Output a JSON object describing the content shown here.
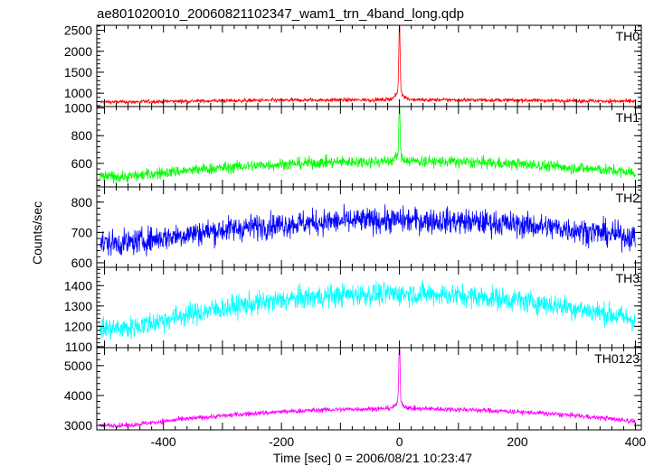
{
  "chart_data": {
    "type": "line",
    "title": "ae801020010_20060821102347_wam1_trn_4band_long.qdp",
    "xlabel": "Time [sec] 0 = 2006/08/21 10:23:47",
    "ylabel": "Counts/sec",
    "xlim": [
      -513,
      410
    ],
    "xticks": [
      -400,
      -200,
      0,
      200,
      400
    ],
    "panels": [
      {
        "name": "TH0",
        "color": "#ff0000",
        "ylim": [
          680,
          2620
        ],
        "yticks": [
          1000,
          1500,
          2000,
          2500
        ],
        "base_edge": 790,
        "base_center": 840,
        "noise": 32,
        "peak": 2560,
        "peak_width": 1.5
      },
      {
        "name": "TH1",
        "color": "#00ff00",
        "ylim": [
          430,
          1010
        ],
        "yticks": [
          600,
          800,
          1000
        ],
        "base_edge": 505,
        "base_center": 615,
        "noise": 30,
        "peak": 990,
        "peak_width": 1.5
      },
      {
        "name": "TH2",
        "color": "#0000ff",
        "ylim": [
          585,
          850
        ],
        "yticks": [
          600,
          700,
          800
        ],
        "base_edge": 665,
        "base_center": 740,
        "noise": 30,
        "peak": null,
        "peak_width": 0
      },
      {
        "name": "TH3",
        "color": "#00ffff",
        "ylim": [
          1095,
          1490
        ],
        "yticks": [
          1100,
          1200,
          1300,
          1400
        ],
        "base_edge": 1190,
        "base_center": 1360,
        "noise": 40,
        "peak": null,
        "peak_width": 0
      },
      {
        "name": "TH0123",
        "color": "#ff00ff",
        "ylim": [
          2850,
          5600
        ],
        "yticks": [
          3000,
          4000,
          5000
        ],
        "base_edge": 3000,
        "base_center": 3560,
        "noise": 60,
        "peak": 5550,
        "peak_width": 1.5
      }
    ]
  }
}
